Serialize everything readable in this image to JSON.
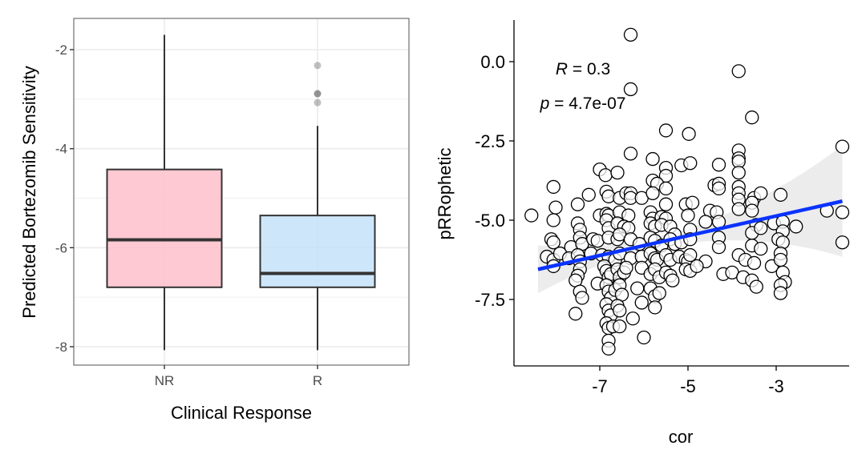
{
  "chart_data": [
    {
      "type": "box",
      "title": "",
      "xlabel": "Clinical Response",
      "ylabel": "Predicted Bortezomib Sensitivity",
      "categories": [
        "NR",
        "R"
      ],
      "ylim": [
        -8.4,
        -1.35
      ],
      "yticks": [
        -2,
        -4,
        -6,
        -8
      ],
      "ytick_labels": [
        "-2",
        "-4",
        "-6",
        "-8"
      ],
      "grid": true,
      "series": [
        {
          "name": "NR",
          "color": "#ffc0cb",
          "whisker_high": -1.7,
          "q3": -4.42,
          "median": -5.84,
          "q1": -6.8,
          "whisker_low": -8.07,
          "outliers": []
        },
        {
          "name": "R",
          "color": "#c6e2f8",
          "whisker_high": -3.54,
          "q3": -5.35,
          "median": -6.52,
          "q1": -6.8,
          "whisker_low": -8.07,
          "outliers": [
            -2.32,
            -2.89,
            -2.89,
            -3.07
          ]
        }
      ]
    },
    {
      "type": "scatter",
      "title": "",
      "xlabel": "cor",
      "ylabel": "pRRophetic",
      "xlim": [
        -8.7,
        -1.4
      ],
      "ylim": [
        -9.3,
        1.4
      ],
      "xticks": [
        -7,
        -5,
        -3
      ],
      "xtick_labels": [
        "-7",
        "-5",
        "-3"
      ],
      "yticks": [
        0.0,
        -2.5,
        -5.0,
        -7.5
      ],
      "ytick_labels": [
        "0.0",
        "-2.5",
        "-5.0",
        "-7.5"
      ],
      "grid": false,
      "annotations": [
        {
          "label": "R",
          "text": " = 0.3"
        },
        {
          "label": "p",
          "text": " = 4.7e-07"
        }
      ],
      "regression": {
        "x_start": -8.4,
        "y_start": -6.55,
        "x_end": -1.5,
        "y_end": -4.4,
        "color": "#0a33ff",
        "ci_color": "#e6e6e6"
      },
      "points": [
        [
          -6.3,
          0.85
        ],
        [
          -3.85,
          -0.3
        ],
        [
          -6.3,
          -0.87
        ],
        [
          -3.55,
          -1.76
        ],
        [
          -5.5,
          -2.17
        ],
        [
          -4.98,
          -2.28
        ],
        [
          -1.5,
          -2.68
        ],
        [
          -6.3,
          -2.9
        ],
        [
          -5.8,
          -3.07
        ],
        [
          -5.5,
          -3.35
        ],
        [
          -5.15,
          -3.27
        ],
        [
          -4.95,
          -3.2
        ],
        [
          -4.3,
          -3.25
        ],
        [
          -3.85,
          -2.8
        ],
        [
          -3.85,
          -3.05
        ],
        [
          -3.85,
          -3.15
        ],
        [
          -3.85,
          -3.5
        ],
        [
          -7.0,
          -3.4
        ],
        [
          -6.87,
          -3.58
        ],
        [
          -6.6,
          -3.5
        ],
        [
          -5.5,
          -3.6
        ],
        [
          -5.8,
          -3.75
        ],
        [
          -5.7,
          -3.85
        ],
        [
          -5.5,
          -4.0
        ],
        [
          -4.4,
          -3.9
        ],
        [
          -4.3,
          -3.85
        ],
        [
          -3.85,
          -3.95
        ],
        [
          -3.85,
          -4.15
        ],
        [
          -3.85,
          -4.35
        ],
        [
          -8.05,
          -3.95
        ],
        [
          -7.25,
          -4.2
        ],
        [
          -6.85,
          -4.1
        ],
        [
          -6.8,
          -4.25
        ],
        [
          -6.55,
          -4.3
        ],
        [
          -6.4,
          -4.15
        ],
        [
          -6.3,
          -4.15
        ],
        [
          -6.3,
          -4.3
        ],
        [
          -6.05,
          -4.3
        ],
        [
          -5.8,
          -4.15
        ],
        [
          -5.5,
          -4.5
        ],
        [
          -5.05,
          -4.5
        ],
        [
          -4.9,
          -4.45
        ],
        [
          -4.3,
          -4.0
        ],
        [
          -3.5,
          -4.3
        ],
        [
          -3.35,
          -4.15
        ],
        [
          -3.55,
          -4.45
        ],
        [
          -2.9,
          -4.2
        ],
        [
          -8.0,
          -4.6
        ],
        [
          -7.5,
          -4.5
        ],
        [
          -8.55,
          -4.85
        ],
        [
          -8.05,
          -5.0
        ],
        [
          -7.0,
          -4.85
        ],
        [
          -6.85,
          -4.8
        ],
        [
          -6.8,
          -4.85
        ],
        [
          -6.55,
          -4.75
        ],
        [
          -6.35,
          -4.85
        ],
        [
          -5.85,
          -4.75
        ],
        [
          -5.8,
          -4.95
        ],
        [
          -5.6,
          -4.9
        ],
        [
          -5.5,
          -4.95
        ],
        [
          -5.0,
          -4.85
        ],
        [
          -4.5,
          -4.7
        ],
        [
          -4.35,
          -4.75
        ],
        [
          -3.85,
          -4.65
        ],
        [
          -3.55,
          -4.7
        ],
        [
          -1.85,
          -4.7
        ],
        [
          -1.5,
          -4.75
        ],
        [
          -7.5,
          -5.1
        ],
        [
          -7.45,
          -5.3
        ],
        [
          -6.85,
          -5.0
        ],
        [
          -6.8,
          -5.25
        ],
        [
          -6.6,
          -5.1
        ],
        [
          -6.45,
          -5.2
        ],
        [
          -6.35,
          -5.25
        ],
        [
          -5.85,
          -5.1
        ],
        [
          -5.75,
          -5.2
        ],
        [
          -5.6,
          -5.15
        ],
        [
          -5.4,
          -5.2
        ],
        [
          -5.3,
          -5.45
        ],
        [
          -4.95,
          -5.3
        ],
        [
          -4.6,
          -5.05
        ],
        [
          -4.3,
          -5.05
        ],
        [
          -3.45,
          -5.15
        ],
        [
          -3.55,
          -5.4
        ],
        [
          -3.35,
          -5.25
        ],
        [
          -3.05,
          -5.1
        ],
        [
          -2.85,
          -5.05
        ],
        [
          -2.85,
          -5.35
        ],
        [
          -2.55,
          -5.2
        ],
        [
          -8.1,
          -5.6
        ],
        [
          -8.05,
          -5.7
        ],
        [
          -7.65,
          -5.85
        ],
        [
          -7.45,
          -5.55
        ],
        [
          -7.4,
          -5.75
        ],
        [
          -7.15,
          -5.6
        ],
        [
          -7.05,
          -5.65
        ],
        [
          -6.8,
          -5.55
        ],
        [
          -6.6,
          -5.6
        ],
        [
          -6.55,
          -5.45
        ],
        [
          -6.3,
          -5.6
        ],
        [
          -6.1,
          -5.75
        ],
        [
          -5.85,
          -5.55
        ],
        [
          -5.75,
          -5.65
        ],
        [
          -5.6,
          -5.8
        ],
        [
          -5.4,
          -5.6
        ],
        [
          -5.3,
          -5.75
        ],
        [
          -5.15,
          -5.7
        ],
        [
          -4.95,
          -5.6
        ],
        [
          -4.3,
          -5.55
        ],
        [
          -4.3,
          -5.85
        ],
        [
          -3.55,
          -5.8
        ],
        [
          -3.35,
          -5.9
        ],
        [
          -2.95,
          -5.6
        ],
        [
          -2.85,
          -5.7
        ],
        [
          -1.5,
          -5.7
        ],
        [
          -8.2,
          -6.15
        ],
        [
          -8.05,
          -6.25
        ],
        [
          -7.9,
          -6.05
        ],
        [
          -7.7,
          -6.2
        ],
        [
          -7.5,
          -6.1
        ],
        [
          -7.45,
          -6.3
        ],
        [
          -7.2,
          -6.05
        ],
        [
          -6.95,
          -6.1
        ],
        [
          -6.8,
          -6.15
        ],
        [
          -6.65,
          -6.25
        ],
        [
          -6.55,
          -6.05
        ],
        [
          -6.3,
          -6.2
        ],
        [
          -6.05,
          -6.15
        ],
        [
          -5.85,
          -6.05
        ],
        [
          -5.75,
          -6.2
        ],
        [
          -5.7,
          -6.25
        ],
        [
          -5.5,
          -6.1
        ],
        [
          -5.4,
          -6.25
        ],
        [
          -5.2,
          -6.15
        ],
        [
          -5.05,
          -6.25
        ],
        [
          -5.0,
          -6.3
        ],
        [
          -4.95,
          -6.1
        ],
        [
          -4.6,
          -6.3
        ],
        [
          -3.85,
          -6.1
        ],
        [
          -3.7,
          -6.25
        ],
        [
          -3.5,
          -6.35
        ],
        [
          -3.1,
          -6.45
        ],
        [
          -2.9,
          -6.05
        ],
        [
          -2.9,
          -6.25
        ],
        [
          -8.05,
          -6.45
        ],
        [
          -7.45,
          -6.55
        ],
        [
          -7.5,
          -6.75
        ],
        [
          -7.55,
          -6.9
        ],
        [
          -6.9,
          -6.45
        ],
        [
          -6.85,
          -6.6
        ],
        [
          -6.8,
          -6.8
        ],
        [
          -6.75,
          -6.7
        ],
        [
          -6.6,
          -6.55
        ],
        [
          -6.55,
          -6.8
        ],
        [
          -6.45,
          -6.65
        ],
        [
          -6.4,
          -6.5
        ],
        [
          -6.05,
          -6.5
        ],
        [
          -5.85,
          -6.7
        ],
        [
          -5.75,
          -6.55
        ],
        [
          -5.65,
          -6.8
        ],
        [
          -5.5,
          -6.65
        ],
        [
          -5.4,
          -6.75
        ],
        [
          -5.35,
          -6.9
        ],
        [
          -5.05,
          -6.55
        ],
        [
          -4.95,
          -6.6
        ],
        [
          -4.8,
          -6.45
        ],
        [
          -4.2,
          -6.7
        ],
        [
          -4.0,
          -6.65
        ],
        [
          -3.75,
          -6.8
        ],
        [
          -3.55,
          -6.9
        ],
        [
          -2.85,
          -6.65
        ],
        [
          -2.8,
          -6.95
        ],
        [
          -7.45,
          -7.25
        ],
        [
          -7.4,
          -7.45
        ],
        [
          -7.05,
          -7.0
        ],
        [
          -6.85,
          -7.05
        ],
        [
          -6.8,
          -7.25
        ],
        [
          -6.75,
          -7.45
        ],
        [
          -6.65,
          -7.2
        ],
        [
          -6.55,
          -7.05
        ],
        [
          -6.5,
          -7.35
        ],
        [
          -6.15,
          -7.15
        ],
        [
          -5.85,
          -7.15
        ],
        [
          -5.75,
          -7.4
        ],
        [
          -5.65,
          -7.3
        ],
        [
          -3.45,
          -7.1
        ],
        [
          -2.9,
          -7.05
        ],
        [
          -2.9,
          -7.3
        ],
        [
          -7.55,
          -7.95
        ],
        [
          -6.85,
          -7.65
        ],
        [
          -6.8,
          -7.85
        ],
        [
          -6.75,
          -8.0
        ],
        [
          -6.6,
          -7.7
        ],
        [
          -6.55,
          -7.85
        ],
        [
          -6.25,
          -8.1
        ],
        [
          -6.05,
          -7.6
        ],
        [
          -5.75,
          -7.75
        ],
        [
          -6.85,
          -8.25
        ],
        [
          -6.8,
          -8.4
        ],
        [
          -6.7,
          -8.35
        ],
        [
          -6.55,
          -8.35
        ],
        [
          -6.0,
          -8.7
        ],
        [
          -6.8,
          -8.8
        ],
        [
          -6.8,
          -9.05
        ]
      ]
    }
  ]
}
